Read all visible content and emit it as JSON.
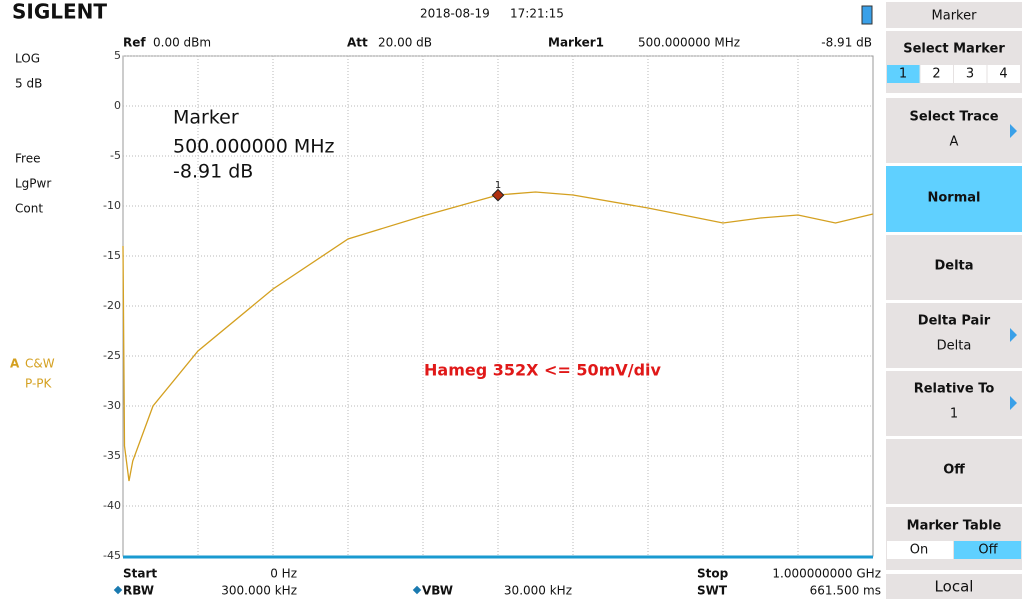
{
  "header": {
    "brand": "SIGLENT",
    "date": "2018-08-19",
    "time": "17:21:15"
  },
  "info": {
    "ref_label": "Ref",
    "ref_value": "0.00 dBm",
    "att_label": "Att",
    "att_value": "20.00 dB",
    "marker_label": "Marker1",
    "marker_freq": "500.000000 MHz",
    "marker_level": "-8.91 dB"
  },
  "left_panel": {
    "scale": "LOG",
    "div": "5 dB",
    "trig": "Free",
    "detector": "LgPwr",
    "sweep": "Cont",
    "trace": "A",
    "trace_mode": "C&W",
    "trace_det": "P-PK"
  },
  "marker_box": {
    "title": "Marker",
    "freq": "500.000000 MHz",
    "level": "-8.91 dB"
  },
  "annotation": "Hameg 352X <= 50mV/div",
  "footer": {
    "start_label": "Start",
    "start_value": "0 Hz",
    "stop_label": "Stop",
    "stop_value": "1.000000000 GHz",
    "rbw_label": "RBW",
    "rbw_value": "300.000 kHz",
    "vbw_label": "VBW",
    "vbw_value": "30.000 kHz",
    "swt_label": "SWT",
    "swt_value": "661.500 ms"
  },
  "menu": {
    "title": "Marker",
    "select_marker": "Select Marker",
    "marker_numbers": [
      "1",
      "2",
      "3",
      "4"
    ],
    "select_trace": "Select Trace",
    "select_trace_value": "A",
    "normal": "Normal",
    "delta": "Delta",
    "delta_pair": "Delta Pair",
    "delta_pair_value": "Delta",
    "relative_to": "Relative To",
    "relative_to_value": "1",
    "off": "Off",
    "marker_table": "Marker Table",
    "table_on": "On",
    "table_off": "Off",
    "local": "Local"
  },
  "chart_data": {
    "type": "line",
    "xlim": [
      0,
      1000
    ],
    "ylim": [
      -45,
      5
    ],
    "yticks": [
      5,
      0,
      -5,
      -10,
      -15,
      -20,
      -25,
      -30,
      -35,
      -40,
      -45
    ],
    "grid": true,
    "series": [
      {
        "name": "A",
        "color": "#d4a020",
        "x": [
          0,
          2,
          8,
          13,
          40,
          100,
          200,
          300,
          400,
          500,
          550,
          600,
          700,
          800,
          850,
          900,
          950,
          1000
        ],
        "values": [
          -14,
          -34,
          -37.5,
          -35.5,
          -30,
          -24.5,
          -18.3,
          -13.3,
          -11,
          -8.9,
          -8.6,
          -8.9,
          -10.2,
          -11.7,
          -11.2,
          -10.9,
          -11.7,
          -10.8
        ]
      }
    ],
    "marker": {
      "label": "1",
      "x": 500,
      "y": -8.91
    }
  }
}
